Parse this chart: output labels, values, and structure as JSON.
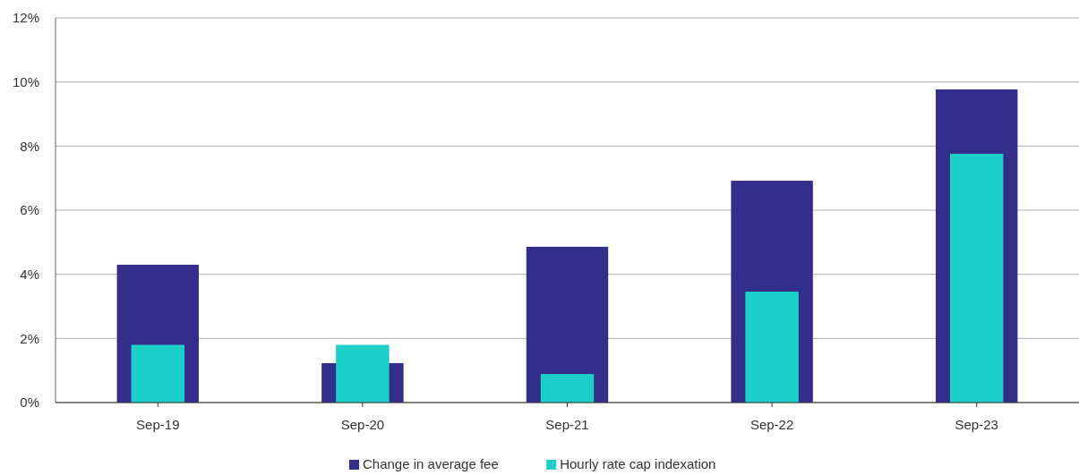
{
  "chart_data": {
    "type": "bar",
    "categories": [
      "Sep-19",
      "Sep-20",
      "Sep-21",
      "Sep-22",
      "Sep-23"
    ],
    "series": [
      {
        "name": "Change in average fee",
        "color": "#332e8a",
        "values": [
          4.3,
          1.23,
          4.86,
          6.92,
          9.77
        ]
      },
      {
        "name": "Hourly rate cap indexation",
        "color": "#1ccfc9",
        "values": [
          1.8,
          1.8,
          0.89,
          3.46,
          7.76
        ]
      }
    ],
    "ylim": [
      0,
      12
    ],
    "yticks": [
      {
        "value": 0,
        "label": "0%"
      },
      {
        "value": 2,
        "label": "2%"
      },
      {
        "value": 4,
        "label": "4%"
      },
      {
        "value": 6,
        "label": "6%"
      },
      {
        "value": 8,
        "label": "8%"
      },
      {
        "value": 10,
        "label": "10%"
      },
      {
        "value": 12,
        "label": "12%"
      }
    ],
    "grid": "y",
    "legend": "bottom"
  }
}
